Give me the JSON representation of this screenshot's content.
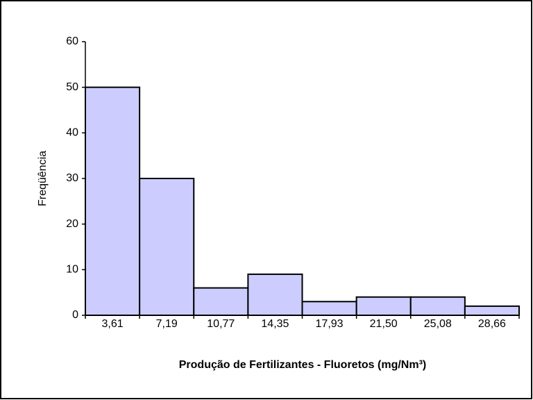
{
  "chart_data": {
    "type": "bar",
    "x_label": "Produção de Fertilizantes - Fluoretos (mg/Nm³)",
    "y_label": "Freqüência",
    "categories": [
      "3,61",
      "7,19",
      "10,77",
      "14,35",
      "17,93",
      "21,50",
      "25,08",
      "28,66"
    ],
    "values": [
      50,
      30,
      6,
      9,
      3,
      4,
      4,
      2
    ],
    "color": "#ccccff",
    "ylim": [
      0,
      60
    ],
    "yticks": [
      0,
      10,
      20,
      30,
      40,
      50,
      60
    ],
    "grid": false
  }
}
